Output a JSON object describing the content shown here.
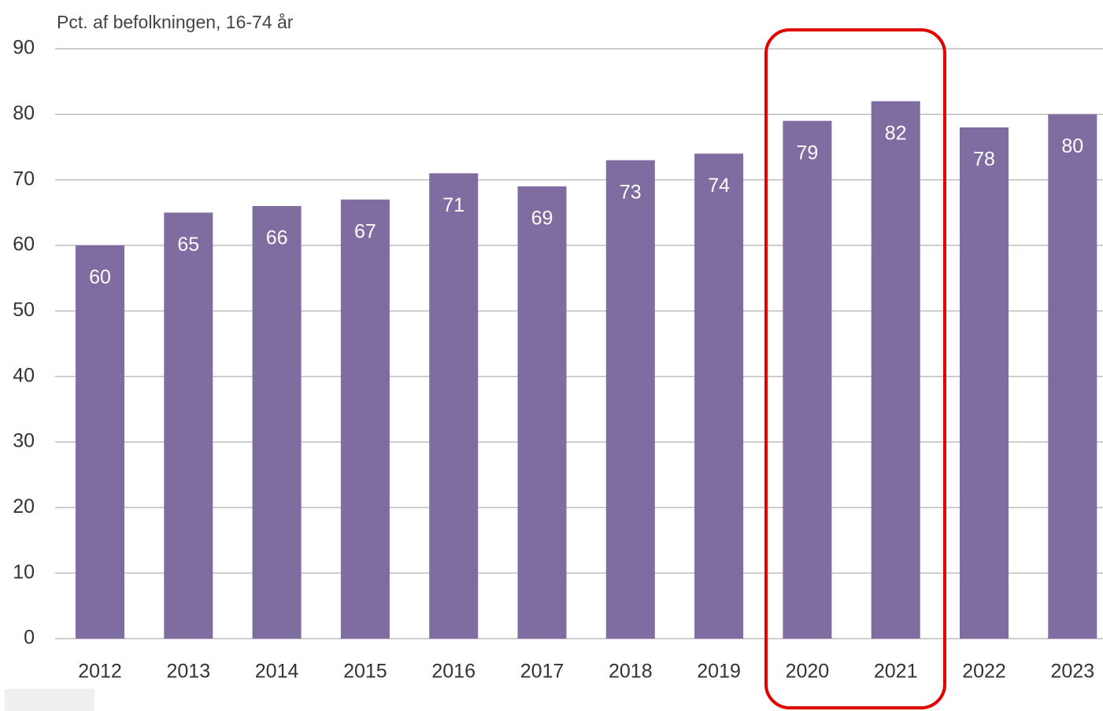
{
  "chart_data": {
    "type": "bar",
    "title": "Pct. af befolkningen, 16-74 år",
    "categories": [
      "2012",
      "2013",
      "2014",
      "2015",
      "2016",
      "2017",
      "2018",
      "2019",
      "2020",
      "2021",
      "2022",
      "2023"
    ],
    "values": [
      60,
      65,
      66,
      67,
      71,
      69,
      73,
      74,
      79,
      82,
      78,
      80
    ],
    "color": "#7f6ca0",
    "ylim": [
      0,
      90
    ],
    "yticks": [
      0,
      10,
      20,
      30,
      40,
      50,
      60,
      70,
      80,
      90
    ],
    "grid": true
  }
}
